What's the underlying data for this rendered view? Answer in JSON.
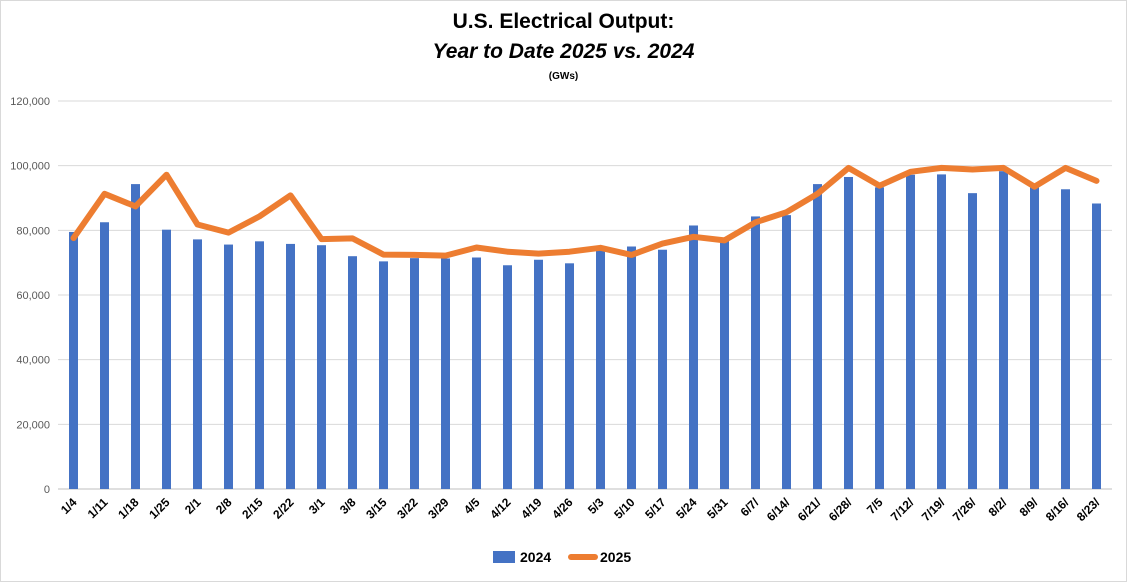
{
  "chart_data": {
    "type": "bar",
    "title": "U.S. Electrical Output:",
    "subtitle": "Year to Date 2025 vs. 2024",
    "unit_note": "(GWs)",
    "xlabel": "",
    "ylabel": "",
    "ylim": [
      0,
      120000
    ],
    "yticks": [
      0,
      20000,
      40000,
      60000,
      80000,
      100000,
      120000
    ],
    "ytick_labels": [
      "0",
      "20,000",
      "40,000",
      "60,000",
      "80,000",
      "100,000",
      "120,000"
    ],
    "grid": true,
    "legend_position": "bottom",
    "categories": [
      "1/4",
      "1/11",
      "1/18",
      "1/25",
      "2/1",
      "2/8",
      "2/15",
      "2/22",
      "3/1",
      "3/8",
      "3/15",
      "3/22",
      "3/29",
      "4/5",
      "4/12",
      "4/19",
      "4/26",
      "5/3",
      "5/10",
      "5/17",
      "5/24",
      "5/31",
      "6/7/",
      "6/14/",
      "6/21/",
      "6/28/",
      "7/5",
      "7/12/",
      "7/19/",
      "7/26/",
      "8/2/",
      "8/9/",
      "8/16/",
      "8/23/"
    ],
    "series": [
      {
        "name": "2024",
        "type": "bar",
        "color": "#4472c4",
        "values": [
          79500,
          82500,
          94300,
          80200,
          77200,
          75600,
          76600,
          75800,
          75400,
          72000,
          70400,
          71400,
          71300,
          71600,
          69200,
          70900,
          69800,
          74400,
          75000,
          74000,
          81500,
          77500,
          84300,
          84700,
          94300,
          96500,
          93300,
          97200,
          97300,
          91500,
          98300,
          93700,
          92700,
          88300
        ]
      },
      {
        "name": "2025",
        "type": "line",
        "color": "#ed7d31",
        "values": [
          77600,
          91300,
          87400,
          97200,
          81800,
          79300,
          84300,
          90800,
          77300,
          77500,
          72500,
          72400,
          72200,
          74700,
          73400,
          72800,
          73400,
          74600,
          72400,
          75900,
          78000,
          76900,
          82500,
          85600,
          91300,
          99300,
          93800,
          98100,
          99300,
          98800,
          99300,
          93500,
          99300,
          95300
        ]
      }
    ]
  }
}
